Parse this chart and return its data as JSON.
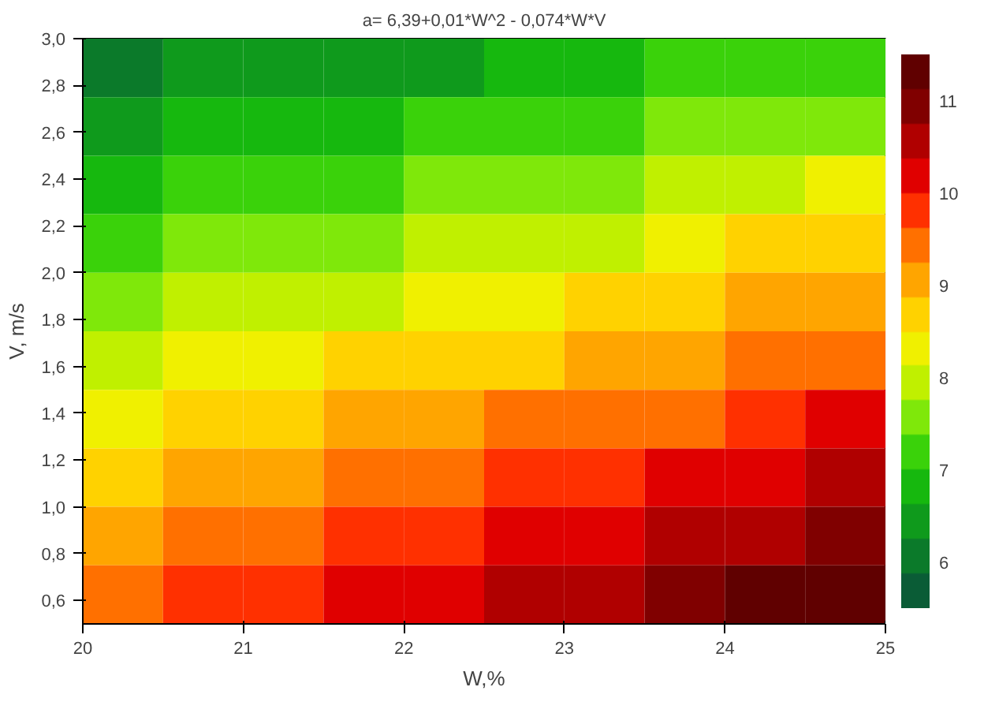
{
  "chart_data": {
    "type": "heatmap",
    "title": "a= 6,39+0,01*W^2 - 0,074*W*V",
    "xlabel": "W,%",
    "ylabel": "V, m/s",
    "xlim": [
      20,
      25
    ],
    "ylim": [
      0.5,
      3.0
    ],
    "xticks": [
      20,
      21,
      22,
      23,
      24,
      25
    ],
    "yticks": [
      {
        "value": 0.6,
        "label": "0,6"
      },
      {
        "value": 0.8,
        "label": "0,8"
      },
      {
        "value": 1.0,
        "label": "1,0"
      },
      {
        "value": 1.2,
        "label": "1,2"
      },
      {
        "value": 1.4,
        "label": "1,4"
      },
      {
        "value": 1.6,
        "label": "1,6"
      },
      {
        "value": 1.8,
        "label": "1,8"
      },
      {
        "value": 2.0,
        "label": "2,0"
      },
      {
        "value": 2.2,
        "label": "2,2"
      },
      {
        "value": 2.4,
        "label": "2,4"
      },
      {
        "value": 2.6,
        "label": "2,6"
      },
      {
        "value": 2.8,
        "label": "2,8"
      },
      {
        "value": 3.0,
        "label": "3,0"
      }
    ],
    "cells": [
      [
        6.2,
        6.3,
        6.4,
        6.5,
        6.6,
        6.7,
        6.9,
        7.0,
        7.1,
        7.3
      ],
      [
        6.6,
        6.7,
        6.8,
        6.9,
        7.0,
        7.2,
        7.3,
        7.4,
        7.6,
        7.7
      ],
      [
        6.9,
        7.1,
        7.2,
        7.3,
        7.4,
        7.6,
        7.7,
        7.9,
        8.0,
        8.2
      ],
      [
        7.3,
        7.4,
        7.6,
        7.7,
        7.8,
        8.0,
        8.1,
        8.3,
        8.5,
        8.6
      ],
      [
        7.7,
        7.8,
        8.0,
        8.1,
        8.3,
        8.4,
        8.6,
        8.7,
        8.9,
        9.1
      ],
      [
        8.1,
        8.2,
        8.4,
        8.5,
        8.7,
        8.8,
        9.0,
        9.2,
        9.4,
        9.5
      ],
      [
        8.4,
        8.6,
        8.7,
        8.9,
        9.1,
        9.3,
        9.4,
        9.6,
        9.8,
        10.0
      ],
      [
        8.8,
        9.0,
        9.1,
        9.3,
        9.5,
        9.7,
        9.9,
        10.1,
        10.3,
        10.5
      ],
      [
        9.2,
        9.4,
        9.5,
        9.7,
        9.9,
        10.1,
        10.3,
        10.5,
        10.7,
        10.9
      ],
      [
        9.6,
        9.7,
        9.9,
        10.1,
        10.3,
        10.5,
        10.7,
        10.9,
        11.2,
        11.4
      ]
    ],
    "clim": [
      5.5,
      11.5
    ],
    "cticks": [
      6,
      7,
      8,
      9,
      10,
      11
    ]
  }
}
